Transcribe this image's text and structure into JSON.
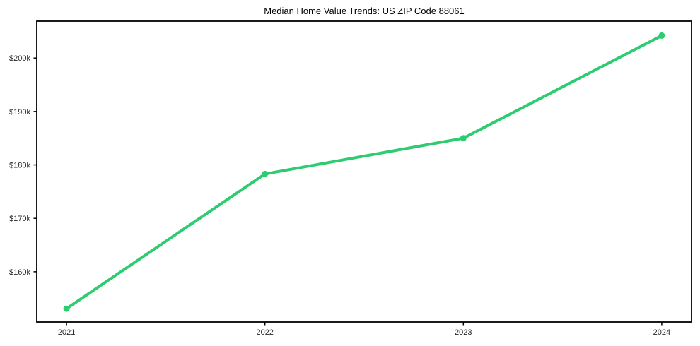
{
  "chart_data": {
    "type": "line",
    "title": "Median Home Value Trends: US ZIP Code 88061",
    "xlabel": "",
    "ylabel": "",
    "x": [
      2021,
      2022,
      2023,
      2024
    ],
    "x_tick_labels": [
      "2021",
      "2022",
      "2023",
      "2024"
    ],
    "y_ticks": [
      160000,
      170000,
      180000,
      190000,
      200000
    ],
    "y_tick_labels": [
      "$160k",
      "$170k",
      "$180k",
      "$190k",
      "$200k"
    ],
    "series": [
      {
        "name": "Median Home Value",
        "values": [
          153100,
          178300,
          185000,
          204200
        ],
        "color": "#2ecc71"
      }
    ],
    "xlim": [
      2020.85,
      2024.15
    ],
    "ylim": [
      150600,
      206900
    ],
    "grid": false,
    "legend": "none"
  },
  "colors": {
    "line": "#2ecc71",
    "spine": "#000000",
    "tick_text": "#262626",
    "background": "#ffffff"
  }
}
